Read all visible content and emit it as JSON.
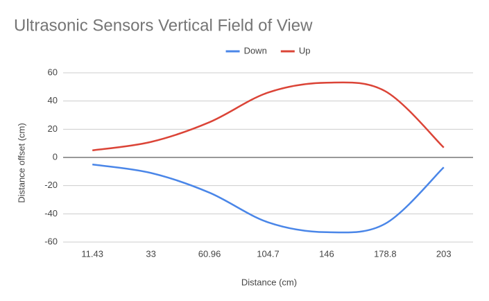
{
  "chart_data": {
    "type": "line",
    "title": "Ultrasonic Sensors Vertical Field of View",
    "x_label": "Distance (cm)",
    "y_label": "Distance offset (cm)",
    "categories": [
      "11.43",
      "33",
      "60.96",
      "104.7",
      "146",
      "178.8",
      "203"
    ],
    "series": [
      {
        "name": "Down",
        "color": "#4a86e8",
        "values": [
          -5,
          -11,
          -25,
          -46,
          -53,
          -47,
          -7
        ]
      },
      {
        "name": "Up",
        "color": "#db4437",
        "values": [
          5,
          11,
          25,
          46,
          53,
          47,
          7
        ]
      }
    ],
    "ylim": [
      -60,
      60
    ],
    "yticks": [
      -60,
      -40,
      -20,
      0,
      20,
      40,
      60
    ],
    "grid": true,
    "legend": "top"
  }
}
